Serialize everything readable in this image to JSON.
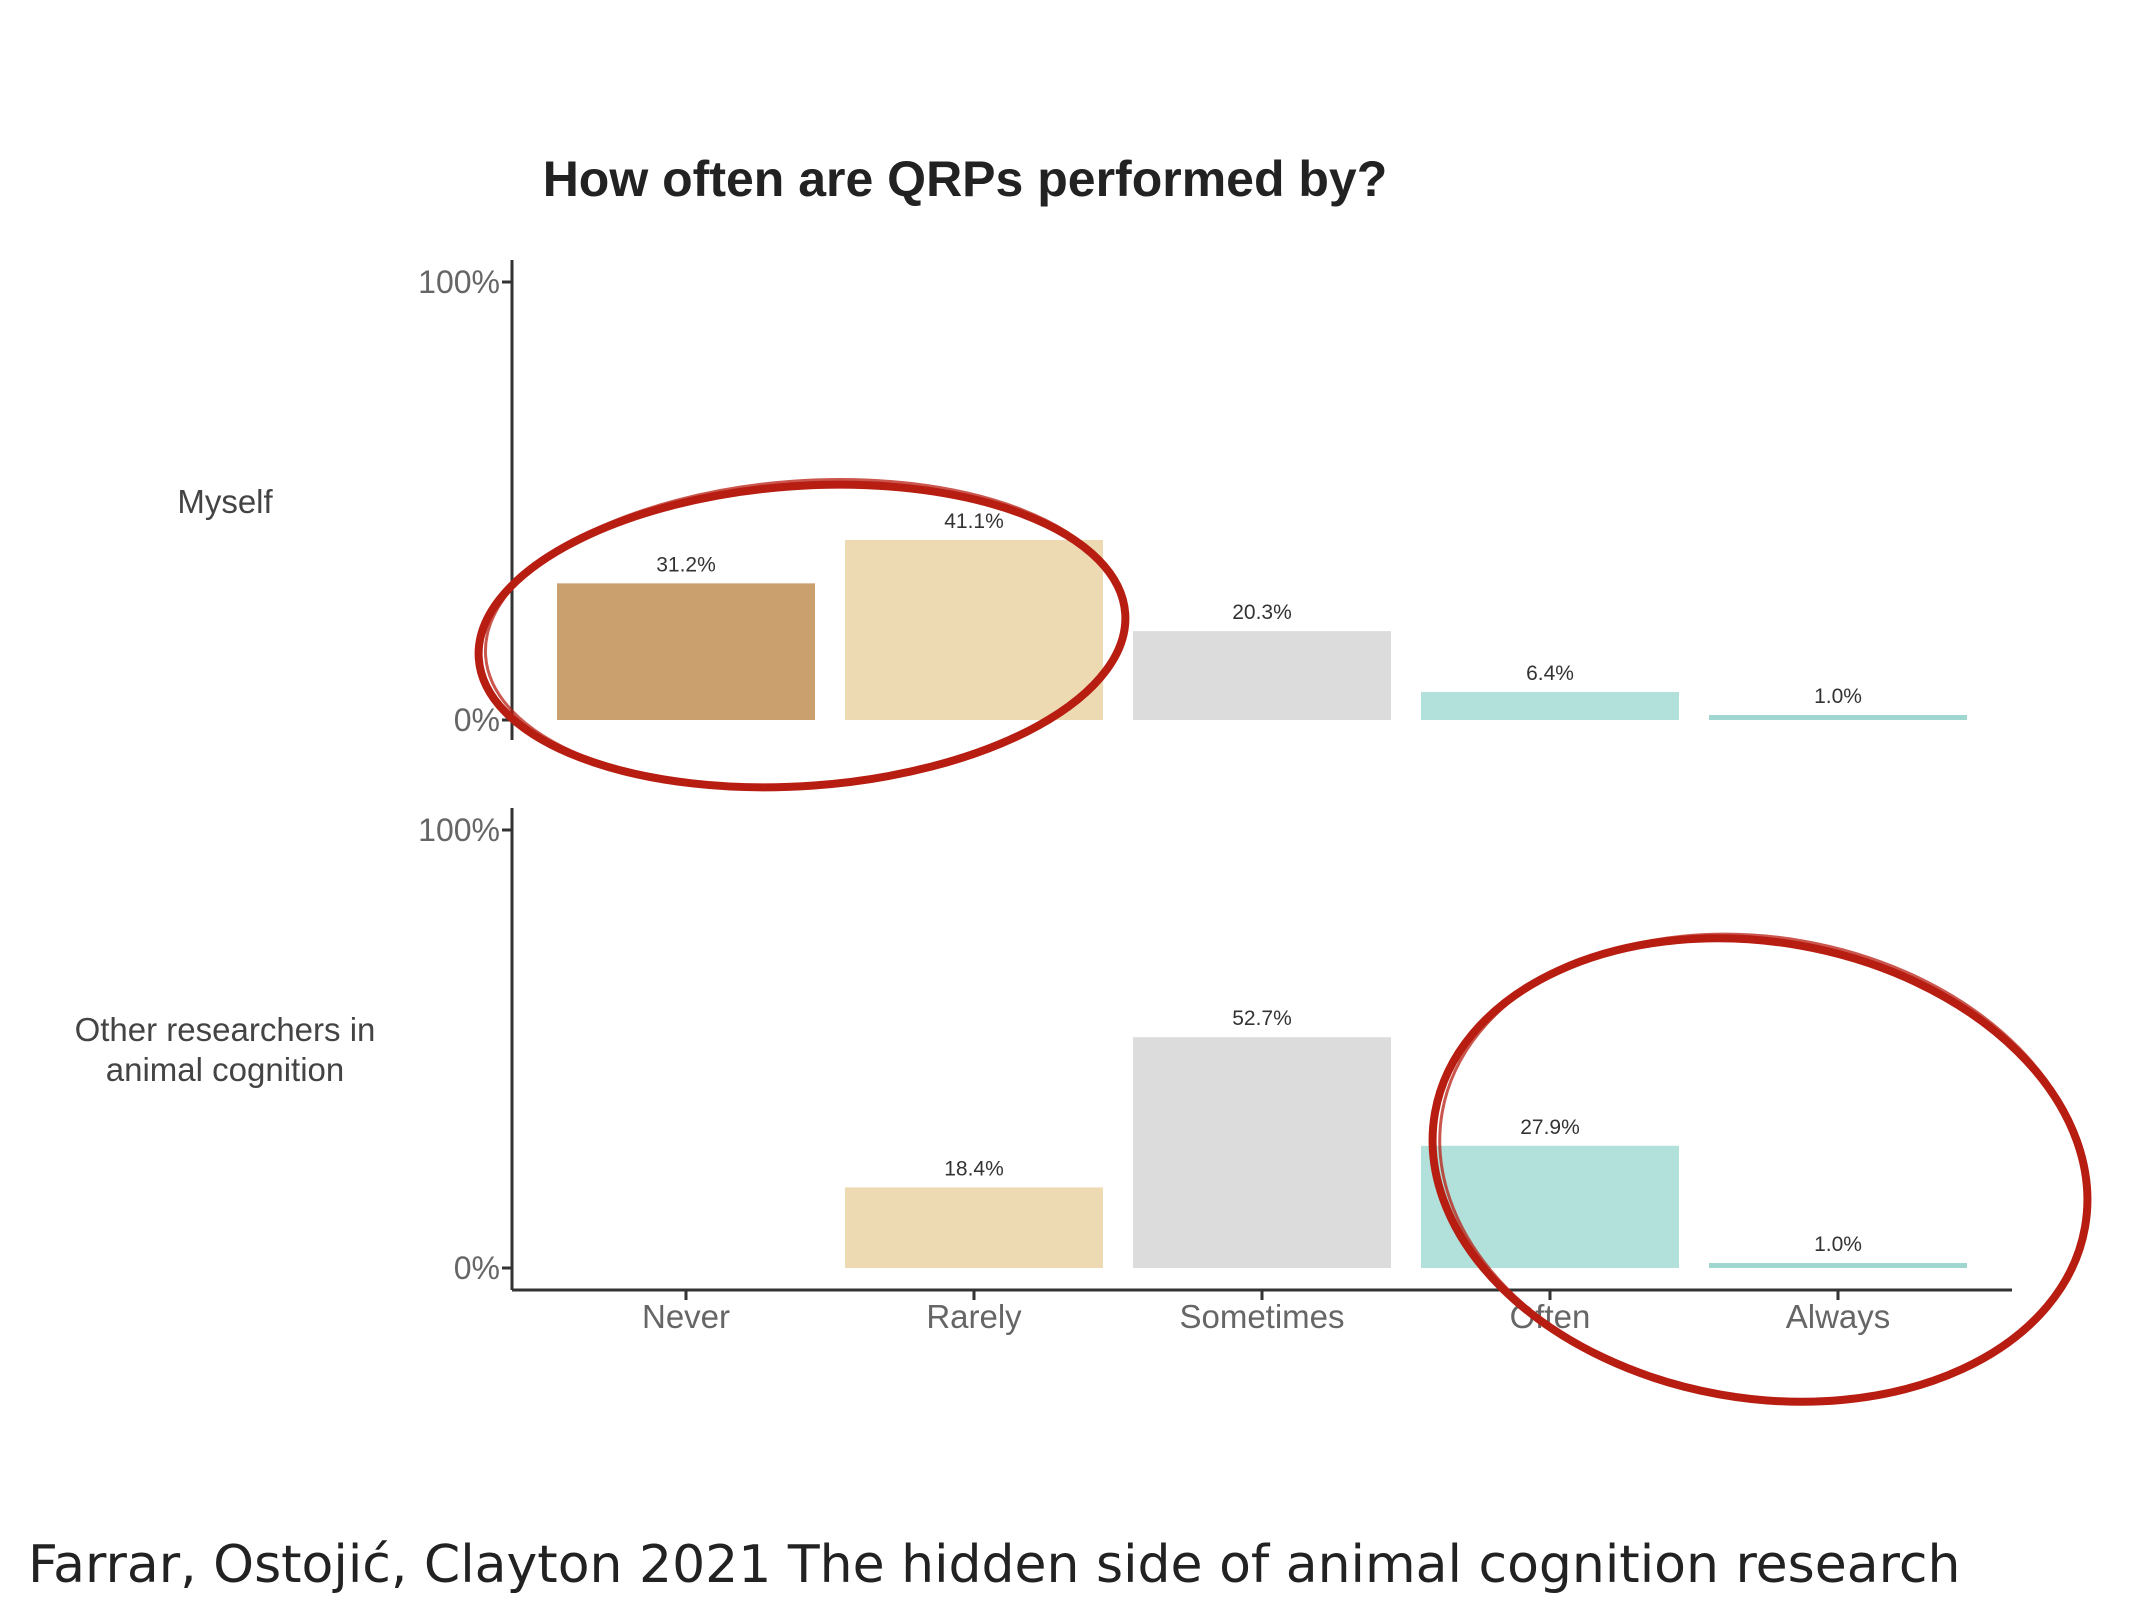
{
  "chart_data": {
    "type": "bar",
    "title": "How often are QRPs performed by?",
    "categories": [
      "Never",
      "Rarely",
      "Sometimes",
      "Often",
      "Always"
    ],
    "ylim": [
      0,
      100
    ],
    "yticks": [
      "0%",
      "100%"
    ],
    "series": [
      {
        "name": "Myself",
        "values": [
          31.2,
          41.1,
          20.3,
          6.4,
          1.0
        ],
        "labels": [
          "31.2%",
          "41.1%",
          "20.3%",
          "6.4%",
          "1.0%"
        ]
      },
      {
        "name": "Other researchers in animal cognition",
        "values": [
          0,
          18.4,
          52.7,
          27.9,
          1.0
        ],
        "labels": [
          "",
          "18.4%",
          "52.7%",
          "27.9%",
          "1.0%"
        ]
      }
    ],
    "colors": [
      "#c9a06e",
      "#eedab2",
      "#dcdcdc",
      "#b2e0da",
      "#9fd6cf"
    ],
    "highlight_color": "#b81d12",
    "grid": false,
    "legend": "none"
  },
  "row_labels": {
    "top": "Myself",
    "bottom_line1": "Other researchers in",
    "bottom_line2": "animal cognition"
  },
  "caption": "Farrar, Ostojić, Clayton 2021 The hidden side of animal cognition research"
}
